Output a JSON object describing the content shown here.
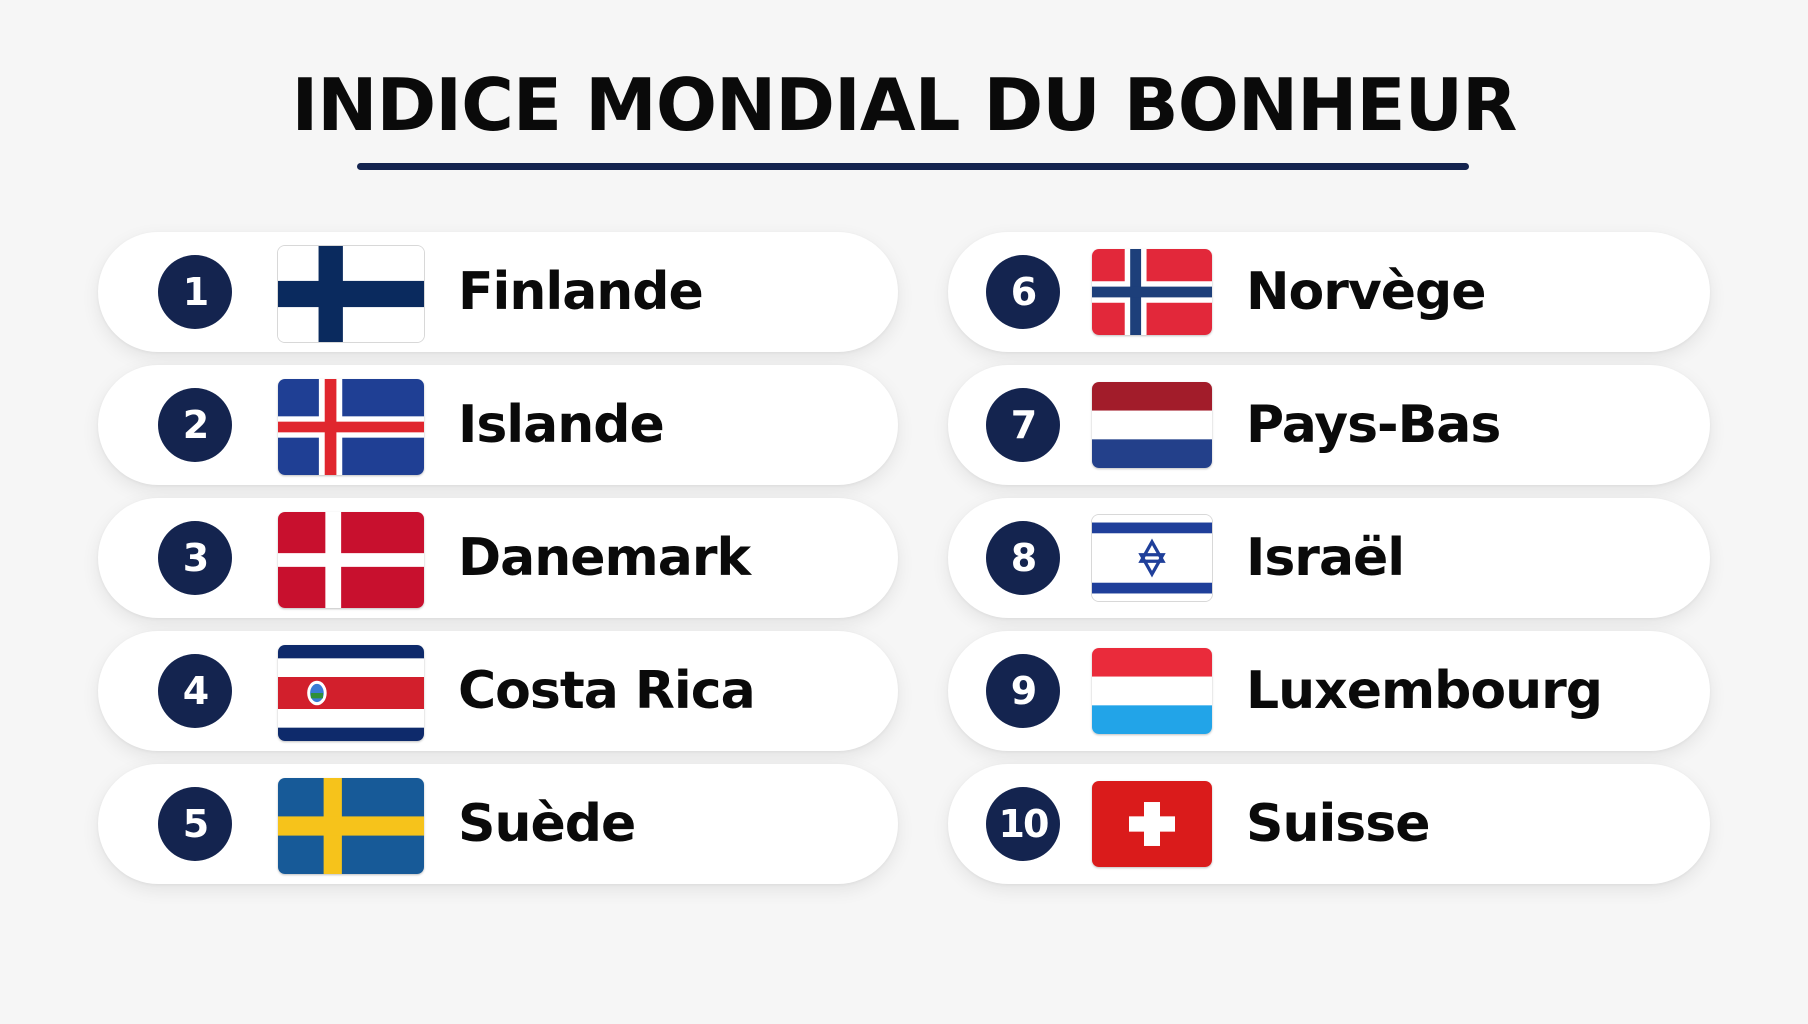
{
  "title": "INDICE MONDIAL DU BONHEUR",
  "colors": {
    "navy": "#14244f",
    "background": "#f6f6f6",
    "card": "#ffffff"
  },
  "rankings": [
    {
      "rank": "1",
      "country": "Finlande",
      "flag": "finland-flag-icon"
    },
    {
      "rank": "2",
      "country": "Islande",
      "flag": "iceland-flag-icon"
    },
    {
      "rank": "3",
      "country": "Danemark",
      "flag": "denmark-flag-icon"
    },
    {
      "rank": "4",
      "country": "Costa Rica",
      "flag": "costa-rica-flag-icon"
    },
    {
      "rank": "5",
      "country": "Suède",
      "flag": "sweden-flag-icon"
    },
    {
      "rank": "6",
      "country": "Norvège",
      "flag": "norway-flag-icon"
    },
    {
      "rank": "7",
      "country": "Pays-Bas",
      "flag": "netherlands-flag-icon"
    },
    {
      "rank": "8",
      "country": "Israël",
      "flag": "israel-flag-icon"
    },
    {
      "rank": "9",
      "country": "Luxembourg",
      "flag": "luxembourg-flag-icon"
    },
    {
      "rank": "10",
      "country": "Suisse",
      "flag": "switzerland-flag-icon"
    }
  ]
}
